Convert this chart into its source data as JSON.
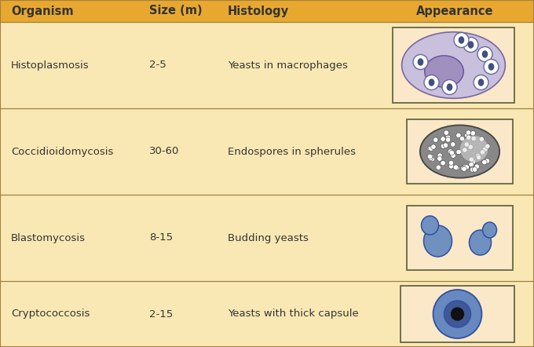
{
  "bg_color": "#FAE8B4",
  "header_color": "#E8A830",
  "border_color": "#A08040",
  "text_color": "#333333",
  "header_text_color": "#333333",
  "title_fontsize": 10.5,
  "body_fontsize": 9.5,
  "header_labels": [
    "Organism",
    "Size (m)",
    "Histology",
    "Appearance"
  ],
  "rows": [
    {
      "organism": "Histoplasmosis",
      "size": "2-5",
      "histology": "Yeasts in macrophages"
    },
    {
      "organism": "Coccidioidomycosis",
      "size": "30-60",
      "histology": "Endospores in spherules"
    },
    {
      "organism": "Blastomycosis",
      "size": "8-15",
      "histology": "Budding yeasts"
    },
    {
      "organism": "Cryptococcosis",
      "size": "2-15",
      "histology": "Yeasts with thick capsule"
    }
  ],
  "box_bg": "#FAE8C8",
  "box_border": "#666644",
  "histo_macro_fill": "#C8C0DC",
  "histo_macro_edge": "#7868A0",
  "histo_nuc_fill": "#A090C0",
  "histo_nuc_edge": "#6050A0",
  "histo_yeast_fill": "#FFFFFF",
  "histo_yeast_edge": "#6868A0",
  "histo_yeast_dot": "#405080",
  "cocc_sph_fill": "#888888",
  "cocc_sph_edge": "#444444",
  "cocc_spore_fill": "#333333",
  "cocc_light_fill": "#DDDDDD",
  "blast_fill": "#7090C0",
  "blast_edge": "#3050A0",
  "crypto_cap_fill": "#6888C0",
  "crypto_cap_edge": "#3050A0",
  "crypto_inner_fill": "#405898",
  "crypto_nuc_fill": "#101010"
}
